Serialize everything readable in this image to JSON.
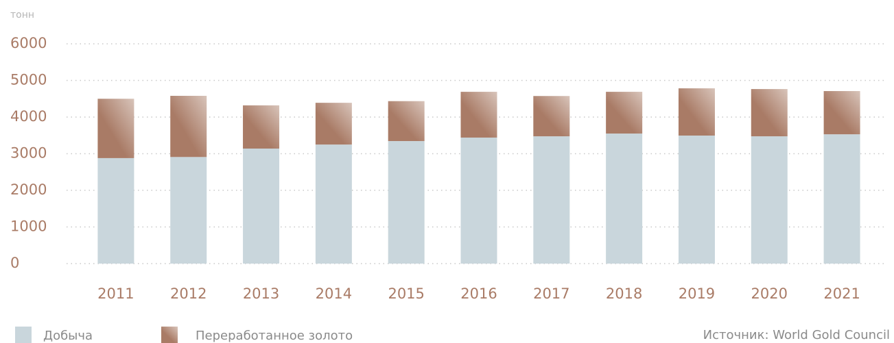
{
  "chart_data": {
    "type": "stacked_bar",
    "y_label": "тонн",
    "categories": [
      "2011",
      "2012",
      "2013",
      "2014",
      "2015",
      "2016",
      "2017",
      "2018",
      "2019",
      "2020",
      "2021"
    ],
    "series": [
      {
        "name": "Добыча",
        "color": "#c9d6dc",
        "values": [
          2880,
          2910,
          3140,
          3250,
          3345,
          3440,
          3475,
          3550,
          3495,
          3475,
          3530
        ]
      },
      {
        "name": "Переработанное золото",
        "color": "#a97b66",
        "gradient": true,
        "values": [
          1620,
          1670,
          1180,
          1140,
          1090,
          1250,
          1100,
          1140,
          1290,
          1290,
          1180
        ]
      }
    ],
    "ylim": [
      0,
      6000
    ],
    "yticks": [
      0,
      1000,
      2000,
      3000,
      4000,
      5000,
      6000
    ],
    "grid": true,
    "source": "Источник: World Gold Council"
  }
}
